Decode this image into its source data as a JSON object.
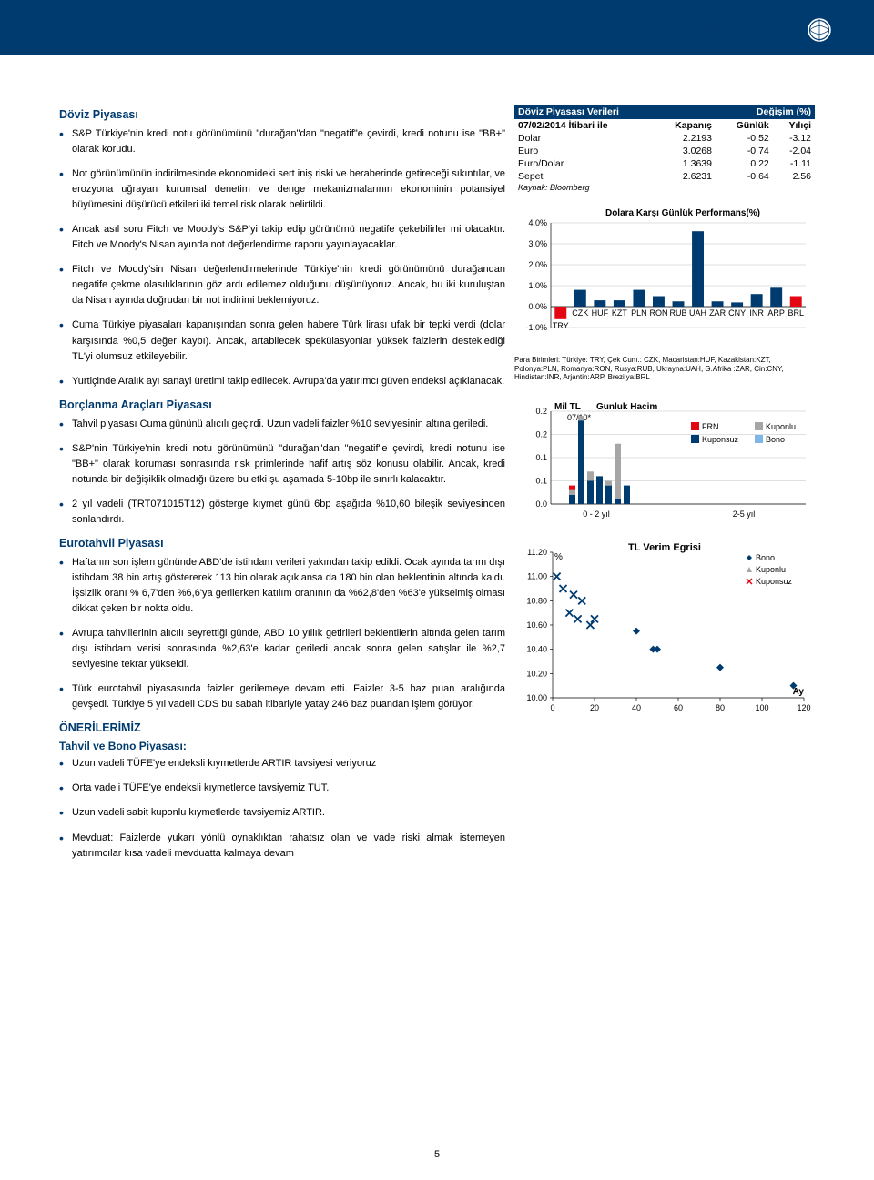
{
  "logo_text": "İŞ YATIRIM",
  "left": {
    "sec1_title": "Döviz Piyasası",
    "sec1_bullets": [
      "S&P Türkiye'nin kredi notu görünümünü \"durağan\"dan \"negatif\"e çevirdi, kredi notunu ise \"BB+\" olarak korudu.",
      "Not görünümünün indirilmesinde ekonomideki sert iniş riski ve beraberinde getireceği sıkıntılar, ve erozyona uğrayan kurumsal denetim ve denge mekanizmalarının ekonominin potansiyel büyümesini düşürücü etkileri iki temel risk olarak belirtildi.",
      "Ancak asıl soru Fitch ve Moody's S&P'yi takip edip görünümü negatife çekebilirler mi olacaktır. Fitch ve Moody's Nisan ayında not değerlendirme raporu yayınlayacaklar.",
      "Fitch ve Moody'sin Nisan değerlendirmelerinde Türkiye'nin kredi görünümünü durağandan negatife çekme olasılıklarının göz ardı edilemez olduğunu düşünüyoruz. Ancak, bu iki kuruluştan da Nisan ayında doğrudan bir not indirimi beklemiyoruz.",
      "Cuma Türkiye piyasaları kapanışından sonra gelen habere Türk lirası ufak bir tepki verdi (dolar karşısında %0,5 değer kaybı). Ancak, artabilecek spekülasyonlar yüksek faizlerin desteklediği TL'yi olumsuz etkileyebilir.",
      "Yurtiçinde Aralık ayı sanayi üretimi takip edilecek. Avrupa'da yatırımcı güven endeksi açıklanacak."
    ],
    "sec2_title": "Borçlanma Araçları Piyasası",
    "sec2_bullets": [
      "Tahvil piyasası Cuma gününü alıcılı geçirdi. Uzun vadeli faizler %10 seviyesinin altına geriledi.",
      "S&P'nin Türkiye'nin kredi notu görünümünü \"durağan\"dan \"negatif\"e çevirdi, kredi notunu ise \"BB+\" olarak koruması sonrasında risk primlerinde hafif artış söz konusu olabilir. Ancak, kredi notunda bir değişiklik olmadığı üzere bu etki şu aşamada 5-10bp ile sınırlı kalacaktır.",
      "2 yıl vadeli (TRT071015T12) gösterge kıymet günü 6bp aşağıda %10,60 bileşik seviyesinden sonlandırdı."
    ],
    "sec3_title": "Eurotahvil Piyasası",
    "sec3_bullets": [
      "Haftanın son işlem gününde ABD'de istihdam verileri yakından takip edildi. Ocak ayında tarım dışı istihdam 38 bin artış göstererek 113 bin olarak açıklansa da 180 bin olan beklentinin altında kaldı. İşsizlik oranı % 6,7'den %6,6'ya gerilerken katılım oranının da %62,8'den %63'e yükselmiş olması dikkat çeken bir nokta oldu.",
      "Avrupa tahvillerinin alıcılı seyrettiği günde, ABD 10 yıllık getirileri beklentilerin altında gelen tarım dışı istihdam verisi sonrasında %2,63'e kadar geriledi ancak sonra gelen satışlar ile %2,7 seviyesine tekrar yükseldi.",
      "Türk eurotahvil piyasasında faizler gerilemeye devam etti. Faizler 3-5 baz puan aralığında gevşedi. Türkiye 5 yıl vadeli CDS bu sabah itibariyle yatay 246 baz puandan işlem görüyor."
    ],
    "sec4_title": "ÖNERİLERİMİZ",
    "sec4_sub": "Tahvil ve Bono Piyasası:",
    "sec4_bullets": [
      "Uzun vadeli TÜFE'ye endeksli kıymetlerde ARTIR tavsiyesi veriyoruz",
      "Orta vadeli TÜFE'ye endeksli kıymetlerde tavsiyemiz TUT.",
      "Uzun vadeli sabit kuponlu kıymetlerde tavsiyemiz ARTIR.",
      "Mevduat: Faizlerde yukarı yönlü oynaklıktan rahatsız olan ve vade riski almak istemeyen yatırımcılar kısa vadeli mevduatta kalmaya devam"
    ]
  },
  "fx_table": {
    "header_left": "Döviz Piyasası Verileri",
    "header_right": "Değişim (%)",
    "cols": [
      "07/02/2014 İtibari ile",
      "Kapanış",
      "Günlük",
      "Yılıçi"
    ],
    "rows": [
      [
        "Dolar",
        "2.2193",
        "-0.52",
        "-3.12"
      ],
      [
        "Euro",
        "3.0268",
        "-0.74",
        "-2.04"
      ],
      [
        "Euro/Dolar",
        "1.3639",
        "0.22",
        "-1.11"
      ],
      [
        "Sepet",
        "2.6231",
        "-0.64",
        "2.56"
      ]
    ],
    "source": "Kaynak: Bloomberg"
  },
  "chart1": {
    "title": "Dolara Karşı Günlük Performans(%)",
    "y_ticks": [
      "-1.0%",
      "0.0%",
      "1.0%",
      "2.0%",
      "3.0%",
      "4.0%"
    ],
    "bars": [
      {
        "label": "TRY",
        "value": -0.6,
        "color": "#e30613"
      },
      {
        "label": "CZK",
        "value": 0.8,
        "color": "#003b6f"
      },
      {
        "label": "HUF",
        "value": 0.3,
        "color": "#003b6f"
      },
      {
        "label": "KZT",
        "value": 0.3,
        "color": "#003b6f"
      },
      {
        "label": "PLN",
        "value": 0.8,
        "color": "#003b6f"
      },
      {
        "label": "RON",
        "value": 0.5,
        "color": "#003b6f"
      },
      {
        "label": "RUB",
        "value": 0.25,
        "color": "#003b6f"
      },
      {
        "label": "UAH",
        "value": 3.6,
        "color": "#003b6f"
      },
      {
        "label": "ZAR",
        "value": 0.25,
        "color": "#003b6f"
      },
      {
        "label": "CNY",
        "value": 0.2,
        "color": "#003b6f"
      },
      {
        "label": "INR",
        "value": 0.6,
        "color": "#003b6f"
      },
      {
        "label": "ARP",
        "value": 0.9,
        "color": "#003b6f"
      },
      {
        "label": "BRL",
        "value": 0.5,
        "color": "#e30613"
      }
    ],
    "footnote": "Para Birimleri: Türkiye: TRY, Çek Cum.: CZK, Macaristan:HUF, Kazakistan:KZT, Polonya:PLN, Romanya:RON, Rusya:RUB, Ukrayna:UAH, G.Afrika :ZAR, Çin:CNY, Hindistan:INR, Arjantin:ARP, Brezilya:BRL"
  },
  "chart2": {
    "title": "Gunluk Hacim",
    "y_label": "Mil TL",
    "sub": "07/10*",
    "y_ticks": [
      "0.0",
      "0.1",
      "0.1",
      "0.2",
      "0.2"
    ],
    "legend": [
      {
        "label": "FRN",
        "color": "#e30613"
      },
      {
        "label": "Kuponlu",
        "color": "#a6a6a6"
      },
      {
        "label": "Kuponsuz",
        "color": "#003b6f"
      },
      {
        "label": "Bono",
        "color": "#7eb6e6"
      }
    ],
    "x_labels": [
      "0 - 2 yıl",
      "2-5 yıl"
    ]
  },
  "chart3": {
    "title": "TL Verim Egrisi",
    "y_label": "%",
    "x_label": "Ay",
    "y_min": 10.0,
    "y_max": 11.2,
    "y_step": 0.2,
    "x_min": 0,
    "x_max": 120,
    "x_step": 20,
    "legend": [
      {
        "label": "Bono",
        "marker": "diamond",
        "color": "#003b6f"
      },
      {
        "label": "Kuponlu",
        "marker": "triangle",
        "color": "#a6a6a6"
      },
      {
        "label": "Kuponsuz",
        "marker": "x",
        "color": "#e30613"
      }
    ],
    "points_x": [
      {
        "x": 2,
        "y": 11.0
      },
      {
        "x": 5,
        "y": 10.9
      },
      {
        "x": 8,
        "y": 10.7
      },
      {
        "x": 10,
        "y": 10.85
      },
      {
        "x": 12,
        "y": 10.65
      },
      {
        "x": 14,
        "y": 10.8
      },
      {
        "x": 18,
        "y": 10.6
      },
      {
        "x": 20,
        "y": 10.65
      }
    ],
    "points_diamond": [
      {
        "x": 40,
        "y": 10.55
      },
      {
        "x": 48,
        "y": 10.4
      },
      {
        "x": 50,
        "y": 10.4
      },
      {
        "x": 80,
        "y": 10.25
      },
      {
        "x": 115,
        "y": 10.1
      }
    ]
  },
  "page_number": "5"
}
